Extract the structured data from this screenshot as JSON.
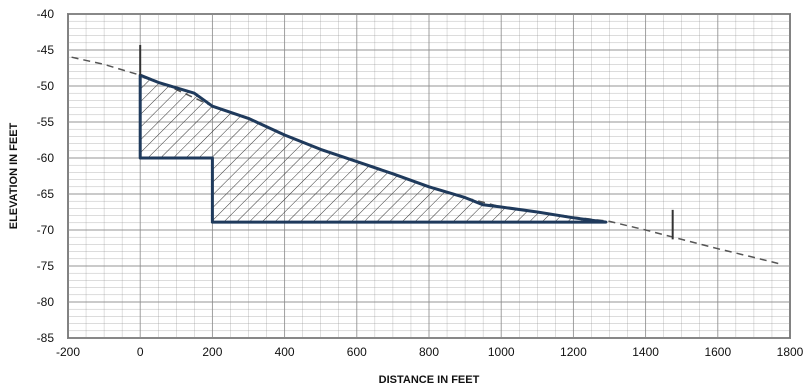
{
  "chart_data": {
    "type": "area",
    "xlabel": "DISTANCE IN FEET",
    "ylabel": "ELEVATION IN FEET",
    "xlim": [
      -200,
      1800
    ],
    "ylim": [
      -85,
      -40
    ],
    "x_ticks": [
      -200,
      0,
      200,
      400,
      600,
      800,
      1000,
      1200,
      1400,
      1600,
      1800
    ],
    "y_ticks": [
      -40,
      -45,
      -50,
      -55,
      -60,
      -65,
      -70,
      -75,
      -80,
      -85
    ],
    "grid": "on",
    "colors": {
      "profile": "#1f3a5c",
      "dashed": "#555555",
      "hatch": "#333333",
      "grid": "#8a8a8a"
    },
    "series": [
      {
        "style": "dashed",
        "points": [
          [
            -190,
            -46
          ],
          [
            -100,
            -47
          ],
          [
            0,
            -48.5
          ],
          [
            100,
            -50.5
          ],
          [
            200,
            -52.8
          ],
          [
            300,
            -54.5
          ],
          [
            400,
            -56.8
          ],
          [
            500,
            -58.8
          ],
          [
            600,
            -60.5
          ],
          [
            700,
            -62.2
          ],
          [
            800,
            -64
          ],
          [
            900,
            -65.5
          ],
          [
            1000,
            -66.8
          ],
          [
            1100,
            -67.5
          ],
          [
            1200,
            -68.2
          ],
          [
            1300,
            -68.8
          ],
          [
            1400,
            -70
          ],
          [
            1500,
            -71.3
          ],
          [
            1600,
            -72.6
          ],
          [
            1700,
            -73.8
          ],
          [
            1780,
            -74.8
          ]
        ]
      },
      {
        "style": "solid",
        "fill": "hatched",
        "points": [
          [
            0,
            -48.5
          ],
          [
            50,
            -49.5
          ],
          [
            150,
            -51
          ],
          [
            200,
            -52.8
          ],
          [
            300,
            -54.5
          ],
          [
            400,
            -56.8
          ],
          [
            500,
            -58.8
          ],
          [
            600,
            -60.5
          ],
          [
            700,
            -62.2
          ],
          [
            800,
            -64
          ],
          [
            900,
            -65.5
          ],
          [
            950,
            -66.5
          ],
          [
            1000,
            -66.8
          ],
          [
            1100,
            -67.5
          ],
          [
            1200,
            -68.3
          ],
          [
            1290,
            -68.9
          ],
          [
            1000,
            -68.9
          ],
          [
            800,
            -68.9
          ],
          [
            600,
            -68.9
          ],
          [
            400,
            -68.9
          ],
          [
            200,
            -68.9
          ],
          [
            200,
            -60
          ],
          [
            100,
            -60
          ],
          [
            0,
            -60
          ],
          [
            0,
            -48.5
          ]
        ]
      }
    ],
    "markers": [
      {
        "x": 0,
        "y1": -44.3,
        "y2": -48.5
      },
      {
        "x": 1475,
        "y1": -67.2,
        "y2": -71.3
      }
    ]
  }
}
